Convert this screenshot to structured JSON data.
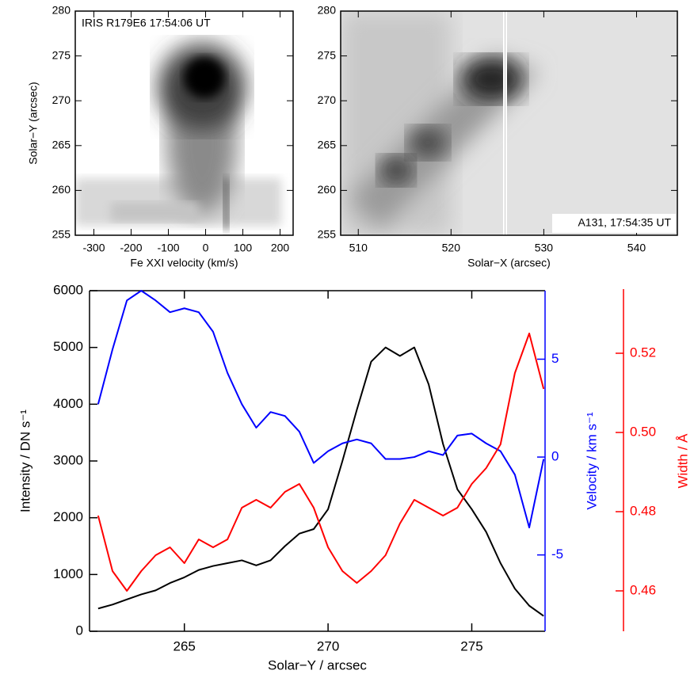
{
  "chart_data": [
    {
      "type": "image",
      "title": "IRIS R179E6 17:54:06 UT",
      "xlabel": "Fe XXI velocity (km/s)",
      "ylabel": "Solar−Y (arcsec)",
      "xlim": [
        -350,
        235
      ],
      "xticks": [
        -300,
        -200,
        -100,
        0,
        100,
        200
      ],
      "ylim": [
        255,
        280
      ],
      "yticks": [
        255,
        260,
        265,
        270,
        275,
        280
      ]
    },
    {
      "type": "image",
      "title": "A131, 17:54:35 UT",
      "xlabel": "Solar−X (arcsec)",
      "xlim": [
        508.1,
        544.4
      ],
      "xticks": [
        510,
        520,
        530,
        540
      ],
      "ylim": [
        255,
        280
      ],
      "yticks": [
        255,
        260,
        265,
        270,
        275,
        280
      ]
    },
    {
      "type": "line",
      "xlabel": "Solar−Y / arcsec",
      "ylabel": "Intensity / DN s⁻¹",
      "y2label": "Velocity / km s⁻¹",
      "y3label": "Width / Å",
      "xlim": [
        261.7,
        277.55
      ],
      "xticks": [
        265,
        270,
        275
      ],
      "ylim": [
        0,
        6000
      ],
      "yticks": [
        0,
        1000,
        2000,
        3000,
        4000,
        5000,
        6000
      ],
      "y2lim": [
        -8.9,
        8.5
      ],
      "y2ticks": [
        -5,
        0,
        5
      ],
      "y3lim": [
        0.4498,
        0.5358
      ],
      "y3ticks": [
        0.46,
        0.48,
        {
          "value": 0.5,
          "label": "0.50"
        },
        0.52
      ],
      "x": [
        262,
        262.5,
        263,
        263.5,
        264,
        264.5,
        265,
        265.5,
        266,
        266.5,
        267,
        267.5,
        268,
        268.5,
        269,
        269.5,
        270,
        270.5,
        271,
        271.5,
        272,
        272.5,
        273,
        273.5,
        274,
        274.5,
        275,
        275.5,
        276,
        276.5,
        277,
        277.5
      ],
      "series": [
        {
          "name": "Intensity",
          "color": "#000000",
          "axis": "y",
          "values": [
            400,
            470,
            560,
            650,
            720,
            850,
            950,
            1080,
            1150,
            1200,
            1250,
            1160,
            1250,
            1500,
            1720,
            1800,
            2150,
            3000,
            3900,
            4750,
            5000,
            4850,
            5000,
            4350,
            3300,
            2500,
            2150,
            1750,
            1200,
            750,
            450,
            270
          ]
        },
        {
          "name": "Velocity",
          "color": "#0000ff",
          "axis": "y2",
          "values": [
            2.7,
            5.5,
            8.0,
            8.5,
            8.0,
            7.4,
            7.6,
            7.4,
            6.4,
            4.3,
            2.7,
            1.5,
            2.3,
            2.1,
            1.3,
            -0.3,
            0.3,
            0.7,
            0.9,
            0.7,
            -0.1,
            -0.1,
            0,
            0.3,
            0.1,
            1.1,
            1.2,
            0.7,
            0.3,
            -0.9,
            -3.6,
            -0.1
          ]
        },
        {
          "name": "Width",
          "color": "#ff0000",
          "axis": "y3",
          "values": [
            0.479,
            0.465,
            0.46,
            0.465,
            0.469,
            0.471,
            0.467,
            0.473,
            0.471,
            0.473,
            0.481,
            0.483,
            0.481,
            0.485,
            0.487,
            0.481,
            0.471,
            0.465,
            0.462,
            0.465,
            0.469,
            0.477,
            0.483,
            0.481,
            0.479,
            0.481,
            0.487,
            0.491,
            0.497,
            0.515,
            0.525,
            0.511
          ]
        }
      ]
    }
  ]
}
